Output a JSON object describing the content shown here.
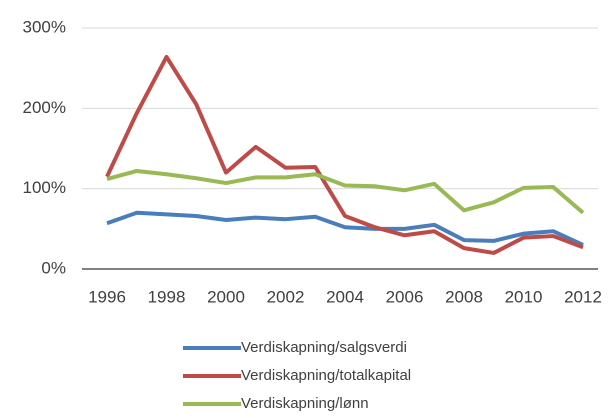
{
  "chart_data": {
    "type": "line",
    "x": [
      1996,
      1997,
      1998,
      1999,
      2000,
      2001,
      2002,
      2003,
      2004,
      2005,
      2006,
      2007,
      2008,
      2009,
      2010,
      2011,
      2012
    ],
    "xlim": [
      1996,
      2012
    ],
    "xticks": [
      1996,
      1998,
      2000,
      2002,
      2004,
      2006,
      2008,
      2010,
      2012
    ],
    "ylim": [
      0,
      300
    ],
    "yticks": [
      {
        "value": 0,
        "label": "0%"
      },
      {
        "value": 100,
        "label": "100%"
      },
      {
        "value": 200,
        "label": "200%"
      },
      {
        "value": 300,
        "label": "300%"
      }
    ],
    "grid": true,
    "legend": "bottom",
    "series": [
      {
        "name": "Verdiskapning/salgsverdi",
        "color": "#4a7ebb",
        "values": [
          57,
          70,
          68,
          66,
          61,
          64,
          62,
          65,
          52,
          50,
          50,
          55,
          36,
          35,
          44,
          47,
          30
        ]
      },
      {
        "name": "Verdiskapning/totalkapital",
        "color": "#be4b48",
        "values": [
          115,
          194,
          264,
          205,
          120,
          152,
          126,
          127,
          66,
          52,
          42,
          47,
          26,
          20,
          39,
          41,
          27
        ]
      },
      {
        "name": "Verdiskapning/lønn",
        "color": "#98b954",
        "values": [
          112,
          122,
          118,
          113,
          107,
          114,
          114,
          118,
          104,
          103,
          98,
          106,
          73,
          83,
          101,
          102,
          70
        ]
      }
    ]
  }
}
